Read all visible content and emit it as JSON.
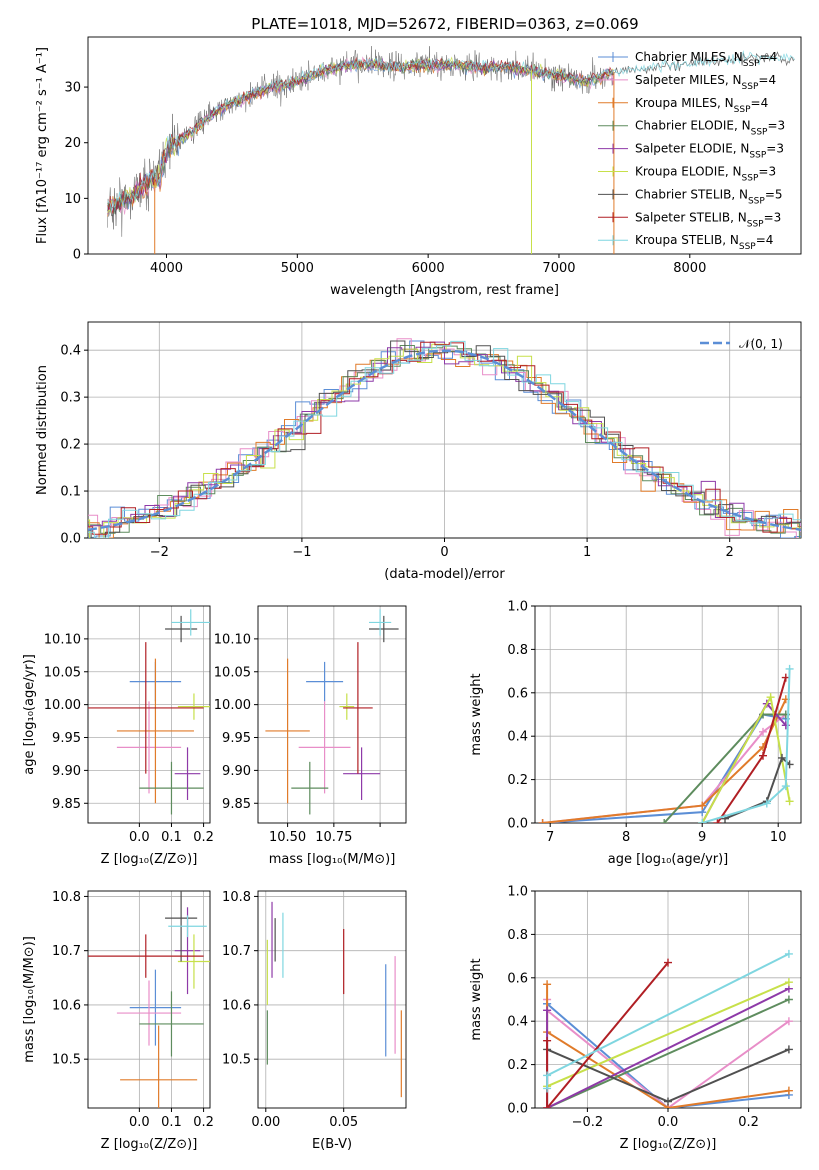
{
  "title": "PLATE=1018, MJD=52672, FIBERID=0363, z=0.069",
  "colors": {
    "chabrier_miles": "#5b8ed6",
    "salpeter_miles": "#e88ec8",
    "kroupa_miles": "#e07b2a",
    "chabrier_elodie": "#5e8c5e",
    "salpeter_elodie": "#8e3aa8",
    "kroupa_elodie": "#c7e04a",
    "chabrier_stelib": "#505050",
    "salpeter_stelib": "#b01f24",
    "kroupa_stelib": "#7fd6e0",
    "gaussian": "#5b8ed6",
    "grid": "#b0b0b0"
  },
  "chart_data": [
    {
      "id": "spectrum",
      "type": "line",
      "title": "PLATE=1018, MJD=52672, FIBERID=0363, z=0.069",
      "xlabel": "wavelength [Angstrom, rest frame]",
      "ylabel": "Flux [fλ10⁻¹⁷ erg cm⁻² s⁻¹ A⁻¹]",
      "xlim": [
        3400,
        8850
      ],
      "ylim": [
        0,
        39
      ],
      "xticks": [
        4000,
        5000,
        6000,
        7000,
        8000
      ],
      "yticks": [
        0,
        10,
        20,
        30
      ],
      "grid": false,
      "legend_position": "right",
      "legend": [
        "Chabrier MILES, N_SSP=4",
        "Salpeter MILES, N_SSP=4",
        "Kroupa MILES, N_SSP=4",
        "Chabrier ELODIE, N_SSP=3",
        "Salpeter ELODIE, N_SSP=3",
        "Kroupa ELODIE, N_SSP=3",
        "Chabrier STELIB, N_SSP=5",
        "Salpeter STELIB, N_SSP=3",
        "Kroupa STELIB, N_SSP=4"
      ],
      "continuum": {
        "x": [
          3550,
          3700,
          3850,
          3950,
          4000,
          4200,
          4400,
          4600,
          4800,
          5000,
          5200,
          5400,
          5600,
          5800,
          6000,
          6200,
          6400,
          6600,
          6800,
          7000,
          7200,
          7400,
          7600,
          7800,
          8000,
          8200,
          8400,
          8600,
          8800
        ],
        "y": [
          8,
          10,
          13,
          14,
          19,
          22,
          26,
          28,
          30,
          31,
          33,
          34,
          34,
          33.5,
          34,
          34,
          33.5,
          33.5,
          33,
          32,
          31,
          32.5,
          33,
          33.5,
          34,
          34.5,
          35,
          35,
          35
        ]
      },
      "spikes": [
        {
          "x": 3910,
          "y": 0
        },
        {
          "x": 6790,
          "y": 0
        },
        {
          "x": 7420,
          "y": 0
        }
      ]
    },
    {
      "id": "residuals",
      "type": "step",
      "xlabel": "(data-model)/error",
      "ylabel": "Normed distribution",
      "xlim": [
        -2.5,
        2.5
      ],
      "ylim": [
        0,
        0.46
      ],
      "xticks": [
        -2,
        -1,
        0,
        1,
        2
      ],
      "yticks": [
        0.0,
        0.1,
        0.2,
        0.3,
        0.4
      ],
      "grid": true,
      "legend_position": "upper right",
      "legend": [
        "𝒩(0, 1)"
      ],
      "bin_width": 0.1
    },
    {
      "id": "age_vs_Z",
      "type": "errorbar",
      "xlabel": "Z [log₁₀(Z/Z⊙)]",
      "ylabel": "age  [log₁₀(age/yr)]",
      "xlim": [
        -0.16,
        0.22
      ],
      "ylim": [
        9.82,
        10.15
      ],
      "xticks": [
        0.0,
        0.1,
        0.2
      ],
      "xtick_labels": [
        "0.0",
        "0.1",
        "0.2"
      ],
      "yticks": [
        9.85,
        9.9,
        9.95,
        10.0,
        10.05,
        10.1
      ],
      "grid": true,
      "points": [
        {
          "series": "chabrier_miles",
          "x": 0.05,
          "y": 10.035,
          "xerr": 0.08,
          "yerr": 0.03
        },
        {
          "series": "salpeter_miles",
          "x": 0.03,
          "y": 9.935,
          "xerr": 0.1,
          "yerr": 0.07
        },
        {
          "series": "kroupa_miles",
          "x": 0.05,
          "y": 9.96,
          "xerr": 0.12,
          "yerr": 0.11
        },
        {
          "series": "chabrier_elodie",
          "x": 0.1,
          "y": 9.873,
          "xerr": 0.1,
          "yerr": 0.04
        },
        {
          "series": "salpeter_elodie",
          "x": 0.15,
          "y": 9.895,
          "xerr": 0.04,
          "yerr": 0.04
        },
        {
          "series": "kroupa_elodie",
          "x": 0.17,
          "y": 9.997,
          "xerr": 0.05,
          "yerr": 0.02
        },
        {
          "series": "chabrier_stelib",
          "x": 0.13,
          "y": 10.115,
          "xerr": 0.05,
          "yerr": 0.02
        },
        {
          "series": "salpeter_stelib",
          "x": 0.02,
          "y": 9.995,
          "xerr": 0.18,
          "yerr": 0.1
        },
        {
          "series": "kroupa_stelib",
          "x": 0.16,
          "y": 10.125,
          "xerr": 0.06,
          "yerr": 0.02
        }
      ]
    },
    {
      "id": "age_vs_mass",
      "type": "errorbar",
      "xlabel": "mass [log₁₀(M/M⊙)]",
      "ylabel": "",
      "xlim": [
        10.42,
        10.82
      ],
      "ylim": [
        9.82,
        10.15
      ],
      "xticks": [
        10.5,
        10.625,
        10.75
      ],
      "xtick_labels": [
        "10.50",
        "10.75"
      ],
      "yticks": [
        9.85,
        9.9,
        9.95,
        10.0,
        10.05,
        10.1
      ],
      "grid": true,
      "points": [
        {
          "series": "chabrier_miles",
          "x": 10.6,
          "y": 10.035,
          "xerr": 0.05,
          "yerr": 0.03
        },
        {
          "series": "salpeter_miles",
          "x": 10.6,
          "y": 9.935,
          "xerr": 0.07,
          "yerr": 0.07
        },
        {
          "series": "kroupa_miles",
          "x": 10.5,
          "y": 9.96,
          "xerr": 0.06,
          "yerr": 0.11
        },
        {
          "series": "chabrier_elodie",
          "x": 10.56,
          "y": 9.873,
          "xerr": 0.05,
          "yerr": 0.04
        },
        {
          "series": "salpeter_elodie",
          "x": 10.7,
          "y": 9.895,
          "xerr": 0.05,
          "yerr": 0.04
        },
        {
          "series": "kroupa_elodie",
          "x": 10.66,
          "y": 9.997,
          "xerr": 0.02,
          "yerr": 0.02
        },
        {
          "series": "chabrier_stelib",
          "x": 10.76,
          "y": 10.115,
          "xerr": 0.04,
          "yerr": 0.02
        },
        {
          "series": "salpeter_stelib",
          "x": 10.69,
          "y": 9.995,
          "xerr": 0.04,
          "yerr": 0.1
        },
        {
          "series": "kroupa_stelib",
          "x": 10.75,
          "y": 10.125,
          "xerr": 0.03,
          "yerr": 0.02
        }
      ]
    },
    {
      "id": "massweight_vs_age",
      "type": "line",
      "xlabel": "age  [log₁₀(age/yr)]",
      "ylabel": "mass weight",
      "xlim": [
        6.8,
        10.3
      ],
      "ylim": [
        0,
        1
      ],
      "xticks": [
        7,
        8,
        9,
        10
      ],
      "yticks": [
        0,
        0.2,
        0.4,
        0.6,
        0.8,
        1.0
      ],
      "ytick_labels": [
        "0.0",
        "0.2",
        "0.4",
        "0.6",
        "0.8",
        "1.0"
      ],
      "grid": true,
      "series": [
        {
          "name": "chabrier_miles",
          "x": [
            6.9,
            9.0,
            9.8,
            10.1
          ],
          "y": [
            0.0,
            0.05,
            0.5,
            0.48
          ]
        },
        {
          "name": "salpeter_miles",
          "x": [
            6.9,
            9.0,
            9.8,
            10.1
          ],
          "y": [
            0.0,
            0.08,
            0.42,
            0.5
          ]
        },
        {
          "name": "kroupa_miles",
          "x": [
            6.9,
            9.0,
            9.8,
            10.1
          ],
          "y": [
            0.0,
            0.08,
            0.35,
            0.57
          ]
        },
        {
          "name": "chabrier_elodie",
          "x": [
            8.5,
            9.8,
            10.1
          ],
          "y": [
            0.0,
            0.5,
            0.5
          ]
        },
        {
          "name": "salpeter_elodie",
          "x": [
            9.0,
            9.85,
            10.1
          ],
          "y": [
            0.0,
            0.55,
            0.45
          ]
        },
        {
          "name": "kroupa_elodie",
          "x": [
            9.0,
            9.9,
            10.15
          ],
          "y": [
            0.0,
            0.58,
            0.1
          ]
        },
        {
          "name": "chabrier_stelib",
          "x": [
            9.3,
            9.85,
            10.05,
            10.15
          ],
          "y": [
            0.02,
            0.1,
            0.3,
            0.27
          ]
        },
        {
          "name": "salpeter_stelib",
          "x": [
            9.2,
            9.8,
            10.1
          ],
          "y": [
            0.0,
            0.31,
            0.67
          ]
        },
        {
          "name": "kroupa_stelib",
          "x": [
            9.0,
            9.85,
            10.1,
            10.15
          ],
          "y": [
            0.0,
            0.09,
            0.17,
            0.71
          ]
        }
      ]
    },
    {
      "id": "mass_vs_Z",
      "type": "errorbar",
      "xlabel": "Z [log₁₀(Z/Z⊙)]",
      "ylabel": "mass [log₁₀(M/M⊙)]",
      "xlim": [
        -0.16,
        0.22
      ],
      "ylim": [
        10.41,
        10.81
      ],
      "xticks": [
        0.0,
        0.1,
        0.2
      ],
      "xtick_labels": [
        "0.0",
        "0.1",
        "0.2"
      ],
      "yticks": [
        10.5,
        10.6,
        10.7,
        10.8
      ],
      "grid": true,
      "points": [
        {
          "series": "chabrier_miles",
          "x": 0.05,
          "y": 10.595,
          "xerr": 0.08,
          "yerr": 0.07
        },
        {
          "series": "salpeter_miles",
          "x": 0.03,
          "y": 10.585,
          "xerr": 0.1,
          "yerr": 0.06
        },
        {
          "series": "kroupa_miles",
          "x": 0.06,
          "y": 10.462,
          "xerr": 0.12,
          "yerr": 0.1
        },
        {
          "series": "chabrier_elodie",
          "x": 0.1,
          "y": 10.565,
          "xerr": 0.1,
          "yerr": 0.06
        },
        {
          "series": "salpeter_elodie",
          "x": 0.15,
          "y": 10.7,
          "xerr": 0.04,
          "yerr": 0.08
        },
        {
          "series": "kroupa_elodie",
          "x": 0.17,
          "y": 10.68,
          "xerr": 0.05,
          "yerr": 0.05
        },
        {
          "series": "chabrier_stelib",
          "x": 0.13,
          "y": 10.76,
          "xerr": 0.05,
          "yerr": 0.08
        },
        {
          "series": "salpeter_stelib",
          "x": 0.02,
          "y": 10.69,
          "xerr": 0.18,
          "yerr": 0.04
        },
        {
          "series": "kroupa_stelib",
          "x": 0.15,
          "y": 10.745,
          "xerr": 0.06,
          "yerr": 0.02
        }
      ]
    },
    {
      "id": "mass_vs_ebv",
      "type": "errorbar",
      "xlabel": "E(B-V)",
      "ylabel": "",
      "xlim": [
        -0.005,
        0.09
      ],
      "ylim": [
        10.41,
        10.81
      ],
      "xticks": [
        0.0,
        0.05
      ],
      "xtick_labels": [
        "0.00",
        "0.05"
      ],
      "yticks": [
        10.5,
        10.6,
        10.7,
        10.8
      ],
      "grid": true,
      "points": [
        {
          "series": "chabrier_miles",
          "x": 0.077,
          "y": 10.59,
          "xerr": 0,
          "yerr": 0.085
        },
        {
          "series": "salpeter_miles",
          "x": 0.083,
          "y": 10.6,
          "xerr": 0,
          "yerr": 0.09
        },
        {
          "series": "kroupa_miles",
          "x": 0.087,
          "y": 10.51,
          "xerr": 0,
          "yerr": 0.08
        },
        {
          "series": "chabrier_elodie",
          "x": 0.001,
          "y": 10.54,
          "xerr": 0,
          "yerr": 0.05
        },
        {
          "series": "salpeter_elodie",
          "x": 0.004,
          "y": 10.72,
          "xerr": 0,
          "yerr": 0.07
        },
        {
          "series": "kroupa_elodie",
          "x": 0.001,
          "y": 10.66,
          "xerr": 0,
          "yerr": 0.06
        },
        {
          "series": "chabrier_stelib",
          "x": 0.006,
          "y": 10.72,
          "xerr": 0,
          "yerr": 0.04
        },
        {
          "series": "salpeter_stelib",
          "x": 0.05,
          "y": 10.68,
          "xerr": 0,
          "yerr": 0.06
        },
        {
          "series": "kroupa_stelib",
          "x": 0.011,
          "y": 10.71,
          "xerr": 0,
          "yerr": 0.06
        }
      ]
    },
    {
      "id": "massweight_vs_Z",
      "type": "line",
      "xlabel": "Z [log₁₀(Z/Z⊙)]",
      "ylabel": "mass weight",
      "xlim": [
        -0.33,
        0.33
      ],
      "ylim": [
        0,
        1
      ],
      "xticks": [
        -0.2,
        0.0,
        0.2
      ],
      "xtick_labels": [
        "−0.2",
        "0.0",
        "0.2"
      ],
      "yticks": [
        0,
        0.2,
        0.4,
        0.6,
        0.8,
        1.0
      ],
      "ytick_labels": [
        "0.0",
        "0.2",
        "0.4",
        "0.6",
        "0.8",
        "1.0"
      ],
      "grid": true,
      "series": [
        {
          "name": "chabrier_miles",
          "x": [
            -0.3,
            -0.3,
            0.0,
            0.3
          ],
          "y": [
            0.48,
            0.48,
            0.0,
            0.06
          ]
        },
        {
          "name": "salpeter_miles",
          "x": [
            -0.3,
            -0.3,
            0.0,
            0.3
          ],
          "y": [
            0.5,
            0.45,
            0.0,
            0.4
          ]
        },
        {
          "name": "kroupa_miles",
          "x": [
            -0.3,
            -0.3,
            0.0,
            0.3
          ],
          "y": [
            0.57,
            0.35,
            0.0,
            0.08
          ]
        },
        {
          "name": "chabrier_elodie",
          "x": [
            -0.3,
            0.3
          ],
          "y": [
            0.0,
            0.5
          ]
        },
        {
          "name": "salpeter_elodie",
          "x": [
            -0.3,
            -0.3,
            0.3
          ],
          "y": [
            0.45,
            0.0,
            0.55
          ]
        },
        {
          "name": "kroupa_elodie",
          "x": [
            -0.3,
            0.3
          ],
          "y": [
            0.1,
            0.58
          ]
        },
        {
          "name": "chabrier_stelib",
          "x": [
            -0.3,
            0.0,
            0.3
          ],
          "y": [
            0.27,
            0.03,
            0.27
          ]
        },
        {
          "name": "salpeter_stelib",
          "x": [
            -0.3,
            -0.3,
            0.0
          ],
          "y": [
            0.31,
            0.0,
            0.67
          ]
        },
        {
          "name": "kroupa_stelib",
          "x": [
            -0.3,
            -0.3,
            0.3
          ],
          "y": [
            0.09,
            0.15,
            0.71
          ]
        }
      ]
    }
  ]
}
